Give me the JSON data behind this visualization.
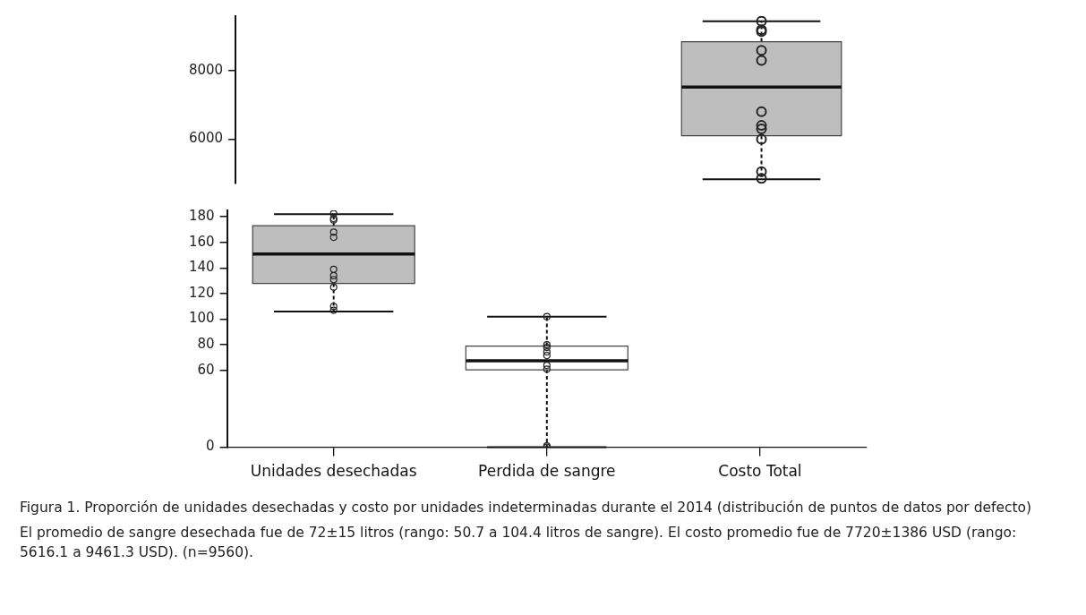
{
  "chart_data": [
    {
      "type": "box",
      "categories": [
        "Unidades desechadas",
        "Perdida de sangre",
        "Costo Total"
      ],
      "tick_labels": "y",
      "ylim": [
        4700,
        9600
      ],
      "yticks": [
        6000,
        8000
      ],
      "colors": [
        null,
        null,
        "#bebebe"
      ],
      "boxes": [
        null,
        null,
        {
          "low": 4825,
          "q1": 6100,
          "median": 7525,
          "q3": 8850,
          "high": 9450
        }
      ],
      "series": [
        {
          "type": "scatter",
          "marker": "circle",
          "color": "#222222",
          "x": [
            "Costo Total",
            "Costo Total",
            "Costo Total",
            "Costo Total",
            "Costo Total",
            "Costo Total",
            "Costo Total",
            "Costo Total",
            "Costo Total",
            "Costo Total",
            "Costo Total"
          ],
          "values": [
            9450,
            9200,
            9150,
            8600,
            8300,
            6800,
            6400,
            6300,
            6000,
            5050,
            4850
          ]
        }
      ]
    },
    {
      "type": "box",
      "categories": [
        "Unidades desechadas",
        "Perdida de sangre",
        "Costo Total"
      ],
      "ylim": [
        0,
        185
      ],
      "yticks": [
        0,
        60,
        80,
        100,
        120,
        140,
        160,
        180
      ],
      "colors": [
        "#bebebe",
        "#ffffff",
        null
      ],
      "boxes": [
        {
          "low": 106,
          "q1": 128,
          "median": 151,
          "q3": 173,
          "high": 182
        },
        {
          "low": 0,
          "q1": 60.5,
          "median": 67.5,
          "q3": 79,
          "high": 102
        },
        null
      ],
      "series": [
        {
          "type": "scatter",
          "marker": "circle",
          "color": "#222222",
          "x": [
            "Unidades desechadas",
            "Unidades desechadas",
            "Unidades desechadas",
            "Unidades desechadas",
            "Unidades desechadas",
            "Unidades desechadas",
            "Unidades desechadas",
            "Unidades desechadas",
            "Unidades desechadas",
            "Unidades desechadas",
            "Unidades desechadas",
            "Perdida de sangre",
            "Perdida de sangre",
            "Perdida de sangre",
            "Perdida de sangre",
            "Perdida de sangre",
            "Perdida de sangre",
            "Perdida de sangre",
            "Perdida de sangre",
            "Perdida de sangre"
          ],
          "values": [
            182.5,
            178.7,
            177.5,
            168,
            164,
            139,
            134,
            131,
            125,
            110,
            107,
            102,
            80,
            78,
            74.5,
            71.7,
            64,
            61,
            1,
            0
          ]
        }
      ],
      "annotations": [
        "Figura 1.  Proporción de unidades desechadas y costo por unidades indeterminadas durante el 2014 (distribución de puntos de datos por defecto)",
        "El promedio de sangre desechada fue de 72±15 litros (rango: 50.7 a 104.4 litros de sangre). El costo promedio fue de 7720±1386 USD (rango: 5616.1 a 9461.3 USD).  (n=9560)."
      ]
    }
  ]
}
